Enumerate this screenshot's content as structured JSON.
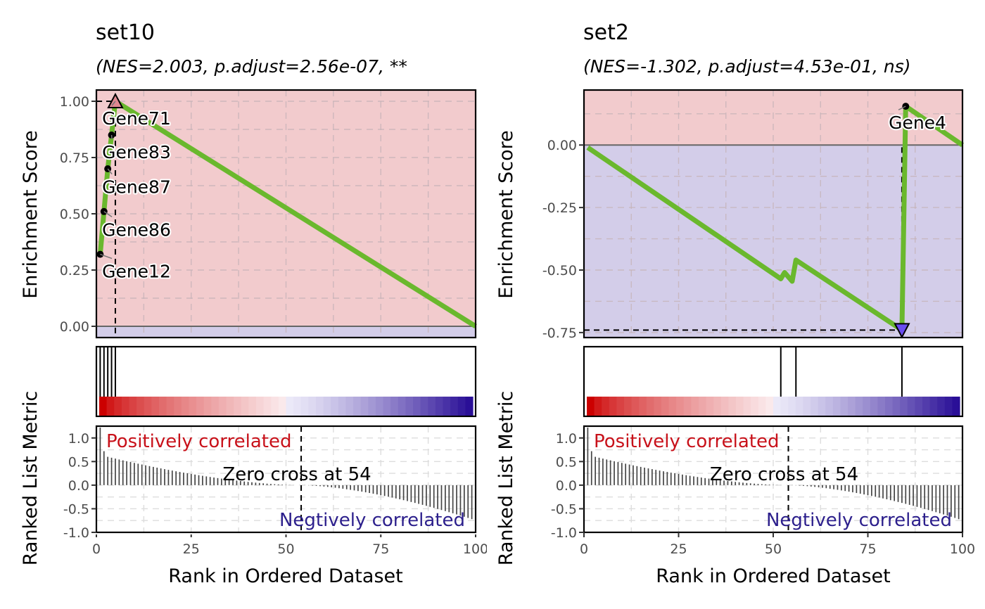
{
  "colors": {
    "positive_region": "#f2cbcd",
    "negative_region": "#d3cde9",
    "es_line": "#6ab82d",
    "pos_text": "#c8111a",
    "neg_text": "#2c1f8c",
    "max_marker": "#e08890",
    "min_marker": "#6a4cf0",
    "heat_pos": "#cc0000",
    "heat_neg": "#2a0f97"
  },
  "chart_data": [
    {
      "type": "line",
      "title": "set10",
      "subtitle": "(NES=2.003, p.adjust=2.56e-07, **",
      "ylabel_top": "Enrichment Score",
      "ylabel_bottom": "Ranked List Metric",
      "xlabel": "Rank in Ordered Dataset",
      "xlim": [
        0,
        100
      ],
      "ylim": [
        -0.05,
        1.05
      ],
      "y_ticks": [
        "0.00",
        "0.25",
        "0.50",
        "0.75",
        "1.00"
      ],
      "y_tick_values": [
        0,
        0.25,
        0.5,
        0.75,
        1.0
      ],
      "x_ticks": [
        "0",
        "25",
        "50",
        "75",
        "100"
      ],
      "x_tick_values": [
        0,
        25,
        50,
        75,
        100
      ],
      "es_curve": {
        "x": [
          1,
          2,
          3,
          4,
          5,
          100
        ],
        "y": [
          0.32,
          0.51,
          0.7,
          0.85,
          1.0,
          0.0
        ]
      },
      "hit_points": {
        "x": [
          1,
          2,
          3,
          4
        ],
        "y": [
          0.32,
          0.51,
          0.7,
          0.85
        ]
      },
      "peak": {
        "x": 5,
        "y": 1.0,
        "direction": "max"
      },
      "gene_labels": [
        {
          "text": "Gene71",
          "x": 5,
          "y": 1.0,
          "lx": 1.5,
          "ly": 0.925
        },
        {
          "text": "Gene83",
          "x": 4,
          "y": 0.85,
          "lx": 1.5,
          "ly": 0.775
        },
        {
          "text": "Gene87",
          "x": 3,
          "y": 0.7,
          "lx": 1.5,
          "ly": 0.62
        },
        {
          "text": "Gene86",
          "x": 2,
          "y": 0.51,
          "lx": 1.5,
          "ly": 0.43
        },
        {
          "text": "Gene12",
          "x": 1,
          "y": 0.32,
          "lx": 1.5,
          "ly": 0.245
        }
      ],
      "hit_ranks": [
        1,
        2,
        3,
        4,
        5
      ],
      "metric_ylim": [
        -1.0,
        1.25
      ],
      "metric_ticks": [
        "1.0",
        "0.5",
        "0.0",
        "-0.5",
        "-1.0"
      ],
      "metric_tick_values": [
        1.0,
        0.5,
        0.0,
        -0.5,
        -1.0
      ],
      "zero_cross": 54,
      "pos_label": "Positively correlated",
      "neg_label": "Negtively correlated",
      "zero_label": "Zero cross at 54"
    },
    {
      "type": "line",
      "title": "set2",
      "subtitle": "(NES=-1.302, p.adjust=4.53e-01, ns)",
      "ylabel_top": "Enrichment Score",
      "ylabel_bottom": "Ranked List Metric",
      "xlabel": "Rank in Ordered Dataset",
      "xlim": [
        0,
        100
      ],
      "ylim": [
        -0.77,
        0.22
      ],
      "y_ticks": [
        "-0.75",
        "-0.50",
        "-0.25",
        "0.00"
      ],
      "y_tick_values": [
        -0.75,
        -0.5,
        -0.25,
        0.0
      ],
      "x_ticks": [
        "0",
        "25",
        "50",
        "75",
        "100"
      ],
      "x_tick_values": [
        0,
        25,
        50,
        75,
        100
      ],
      "es_curve": {
        "x": [
          1,
          52,
          53,
          55,
          56,
          84,
          85,
          100
        ],
        "y": [
          -0.01,
          -0.535,
          -0.51,
          -0.545,
          -0.46,
          -0.74,
          0.155,
          0.0
        ]
      },
      "hit_points": {
        "x": [
          85
        ],
        "y": [
          0.155
        ]
      },
      "peak": {
        "x": 84,
        "y": -0.74,
        "direction": "min"
      },
      "gene_labels": [
        {
          "text": "Gene4",
          "x": 85,
          "y": 0.155,
          "lx": 80.5,
          "ly": 0.09
        }
      ],
      "hit_ranks": [
        52,
        56,
        84
      ],
      "metric_ylim": [
        -1.0,
        1.25
      ],
      "metric_ticks": [
        "1.0",
        "0.5",
        "0.0",
        "-0.5",
        "-1.0"
      ],
      "metric_tick_values": [
        1.0,
        0.5,
        0.0,
        -0.5,
        -1.0
      ],
      "zero_cross": 54,
      "pos_label": "Positively correlated",
      "neg_label": "Negtively correlated",
      "zero_label": "Zero cross at 54"
    }
  ]
}
